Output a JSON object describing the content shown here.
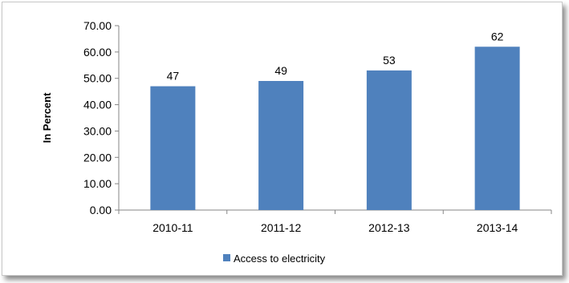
{
  "chart_data": {
    "type": "bar",
    "categories": [
      "2010-11",
      "2011-12",
      "2012-13",
      "2013-14"
    ],
    "series": [
      {
        "name": "Access to electricity",
        "values": [
          47,
          49,
          53,
          62
        ],
        "color": "#4f81bd"
      }
    ],
    "data_labels": [
      "47",
      "49",
      "53",
      "62"
    ],
    "y_ticks": [
      "0.00",
      "10.00",
      "20.00",
      "30.00",
      "40.00",
      "50.00",
      "60.00",
      "70.00"
    ],
    "ylabel": "In Percent",
    "xlabel": "",
    "title": "",
    "ylim": [
      0,
      70
    ],
    "grid": false,
    "legend_position": "bottom"
  }
}
